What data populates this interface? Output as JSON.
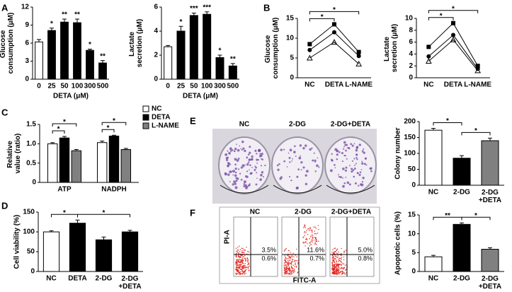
{
  "panels": [
    "A",
    "B",
    "C",
    "D",
    "E",
    "F"
  ],
  "images": {
    "E": {
      "labels": [
        "NC",
        "2-DG",
        "2-DG+DETA"
      ]
    },
    "F": {
      "labels": [
        "NC",
        "2-DG",
        "2-DG+DETA"
      ],
      "y_label": "PI-A",
      "x_label": "FITC-A",
      "quadrant_values": [
        [
          "3.5%",
          "0.6%"
        ],
        [
          "11.6%",
          "0.7%"
        ],
        [
          "5.0%",
          "0.8%"
        ]
      ]
    }
  },
  "chart_data": [
    {
      "type": "bar",
      "ylabel": "Glucose consumption (μM)",
      "xlabel": "DETA (μM)",
      "categories": [
        "0",
        "25",
        "50",
        "100",
        "300",
        "500"
      ],
      "values": [
        6.2,
        8.1,
        9.5,
        9.4,
        4.8,
        2.7
      ],
      "errors": [
        0.4,
        0.4,
        0.5,
        0.6,
        0.2,
        0.4
      ],
      "colors": [
        "#ffffff",
        "#000000",
        "#000000",
        "#000000",
        "#000000",
        "#000000"
      ],
      "value_annotations": [
        null,
        "*",
        "**",
        "**",
        "*",
        "**"
      ],
      "ylim": [
        0,
        12
      ],
      "yticks": [
        0,
        3,
        6,
        9,
        12
      ]
    },
    {
      "type": "bar",
      "ylabel": "Lactate secretion (μM)",
      "xlabel": "DETA (μM)",
      "categories": [
        "0",
        "25",
        "50",
        "100",
        "300",
        "500"
      ],
      "values": [
        2.7,
        4.0,
        5.3,
        5.4,
        1.8,
        1.1
      ],
      "errors": [
        0.1,
        0.4,
        0.2,
        0.2,
        0.2,
        0.2
      ],
      "colors": [
        "#ffffff",
        "#000000",
        "#000000",
        "#000000",
        "#000000",
        "#000000"
      ],
      "value_annotations": [
        null,
        "*",
        "***",
        "***",
        "*",
        "**"
      ],
      "ylim": [
        0,
        6
      ],
      "yticks": [
        0,
        2,
        4,
        6
      ]
    },
    {
      "type": "line",
      "ylabel": "Glucose consumption (μM)",
      "categories": [
        "NC",
        "DETA",
        "L-NAME"
      ],
      "series": [
        {
          "values": [
            8.5,
            13.5,
            6.5
          ],
          "color": "#000000",
          "marker": "square"
        },
        {
          "values": [
            7.0,
            11.5,
            5.5
          ],
          "color": "#000000",
          "marker": "circle"
        },
        {
          "values": [
            5.0,
            9.0,
            3.5
          ],
          "color": "#000000",
          "marker": "triangle"
        }
      ],
      "brackets": [
        {
          "between": [
            0,
            1
          ],
          "label": "*"
        },
        {
          "between": [
            0,
            2
          ],
          "label": "*"
        }
      ],
      "ylim": [
        0,
        15
      ],
      "yticks": [
        0,
        5,
        10,
        15
      ]
    },
    {
      "type": "line",
      "ylabel": "Lactate secretion (μM)",
      "categories": [
        "NC",
        "DETA",
        "L-NAME"
      ],
      "series": [
        {
          "values": [
            5.2,
            9.2,
            2.0
          ],
          "color": "#000000",
          "marker": "square"
        },
        {
          "values": [
            3.6,
            7.2,
            1.5
          ],
          "color": "#000000",
          "marker": "circle"
        },
        {
          "values": [
            2.8,
            6.4,
            1.2
          ],
          "color": "#000000",
          "marker": "triangle"
        }
      ],
      "brackets": [
        {
          "between": [
            0,
            1
          ],
          "label": "*"
        },
        {
          "between": [
            0,
            2
          ],
          "label": "*"
        }
      ],
      "ylim": [
        0,
        10
      ],
      "yticks": [
        0,
        2,
        4,
        6,
        8,
        10
      ]
    },
    {
      "type": "grouped_bar",
      "ylabel": "Relative value (ratio)",
      "categories": [
        "ATP",
        "NADPH"
      ],
      "series": [
        {
          "name": "NC",
          "color": "#ffffff",
          "values": [
            1.0,
            1.03
          ],
          "errors": [
            0.03,
            0.04
          ]
        },
        {
          "name": "DETA",
          "color": "#000000",
          "values": [
            1.15,
            1.2
          ],
          "errors": [
            0.04,
            0.02
          ]
        },
        {
          "name": "L-NAME",
          "color": "#808080",
          "values": [
            0.82,
            0.85
          ],
          "errors": [
            0.03,
            0.03
          ]
        }
      ],
      "brackets": [
        {
          "category": 0,
          "between": [
            0,
            1
          ],
          "label": "*"
        },
        {
          "category": 0,
          "between": [
            0,
            2
          ],
          "label": "*"
        },
        {
          "category": 1,
          "between": [
            0,
            1
          ],
          "label": "*"
        },
        {
          "category": 1,
          "between": [
            0,
            2
          ],
          "label": "*"
        }
      ],
      "legend": "upper right",
      "ylim": [
        0,
        1.5
      ],
      "yticks": [
        0,
        0.5,
        {
          "value": 1,
          "label": "1.0"
        },
        1.5
      ]
    },
    {
      "type": "bar",
      "ylabel": "Cell viability (%)",
      "categories": [
        "NC",
        "DETA",
        "2-DG",
        "2-DG\n+DETA"
      ],
      "values": [
        100,
        122,
        80,
        100
      ],
      "errors": [
        3,
        8,
        7,
        4
      ],
      "colors": [
        "#ffffff",
        "#000000",
        "#000000",
        "#000000"
      ],
      "brackets": [
        {
          "between": [
            0,
            1
          ],
          "label": "*"
        },
        {
          "between": [
            1,
            3
          ],
          "label": "*"
        }
      ],
      "ylim": [
        0,
        150
      ],
      "yticks": [
        0,
        50,
        100,
        150
      ]
    },
    {
      "type": "bar",
      "ylabel": "Colony number",
      "categories": [
        "NC",
        "2-DG",
        "2-DG\n+DETA"
      ],
      "values": [
        173,
        85,
        140
      ],
      "errors": [
        6,
        8,
        8
      ],
      "colors": [
        "#ffffff",
        "#000000",
        "#808080"
      ],
      "brackets": [
        {
          "between": [
            0,
            1
          ],
          "label": "*"
        },
        {
          "between": [
            1,
            2
          ],
          "label": "*"
        }
      ],
      "ylim": [
        0,
        200
      ],
      "yticks": [
        0,
        50,
        100,
        150,
        200
      ]
    },
    {
      "type": "bar",
      "ylabel": "Apoptotic cells (%)",
      "categories": [
        "NC",
        "2-DG",
        "2-DG\n+DETA"
      ],
      "values": [
        3.9,
        12.5,
        5.9
      ],
      "errors": [
        0.4,
        0.4,
        0.4
      ],
      "colors": [
        "#ffffff",
        "#000000",
        "#808080"
      ],
      "brackets": [
        {
          "between": [
            0,
            1
          ],
          "label": "**"
        },
        {
          "between": [
            1,
            2
          ],
          "label": "*"
        }
      ],
      "ylim": [
        0,
        15
      ],
      "yticks": [
        0,
        5,
        10,
        15
      ]
    }
  ]
}
